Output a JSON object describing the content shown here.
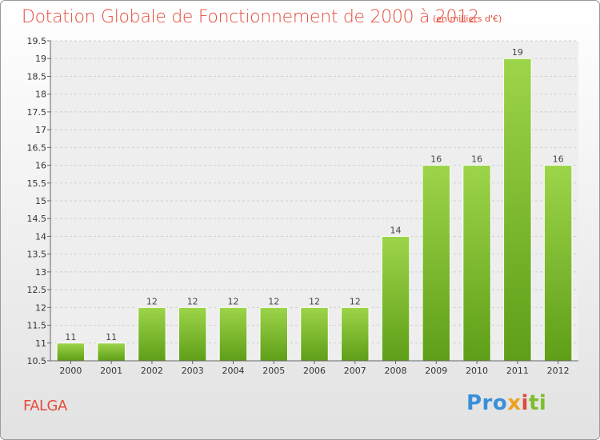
{
  "chart_data": {
    "type": "bar",
    "title": "Dotation Globale de Fonctionnement de 2000 à 2012",
    "subtitle": "(en milliers d'€)",
    "categories": [
      "2000",
      "2001",
      "2002",
      "2003",
      "2004",
      "2005",
      "2006",
      "2007",
      "2008",
      "2009",
      "2010",
      "2011",
      "2012"
    ],
    "values": [
      11,
      11,
      12,
      12,
      12,
      12,
      12,
      12,
      14,
      16,
      16,
      19,
      16
    ],
    "ylim": [
      10.5,
      19.5
    ],
    "yticks": [
      "10.5",
      "11",
      "11.5",
      "12",
      "12.5",
      "13",
      "13.5",
      "14",
      "14.5",
      "15",
      "15.5",
      "16",
      "16.5",
      "17",
      "17.5",
      "18",
      "18.5",
      "19",
      "19.5"
    ],
    "grid": true,
    "bar_color": "#7ab82a"
  },
  "footer": {
    "commune": "FALGA",
    "logo": [
      "Pro",
      "x",
      "i",
      "ti"
    ]
  }
}
